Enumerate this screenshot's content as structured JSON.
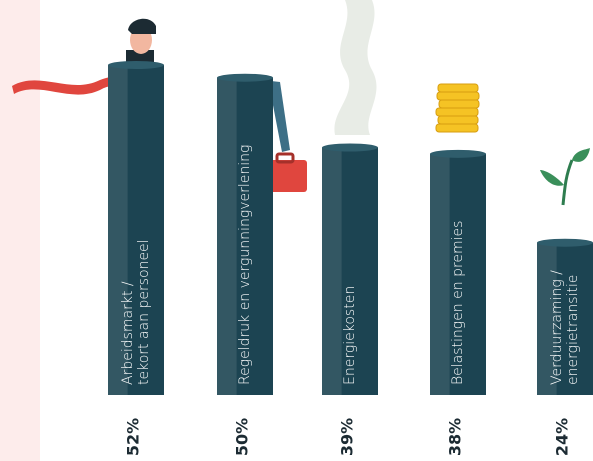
{
  "chart_data": {
    "type": "bar",
    "categories": [
      [
        "Arbeidsmarkt /",
        "tekort aan personeel"
      ],
      [
        "Regeldruk en vergunningverlening"
      ],
      [
        "Energiekosten"
      ],
      [
        "Belastingen en premies"
      ],
      [
        "Verduurzaming /",
        "energietransitie"
      ]
    ],
    "values": [
      52,
      50,
      39,
      38,
      24
    ],
    "value_labels": [
      "52%",
      "50%",
      "39%",
      "38%",
      "24%"
    ],
    "color": "#1c4452"
  }
}
